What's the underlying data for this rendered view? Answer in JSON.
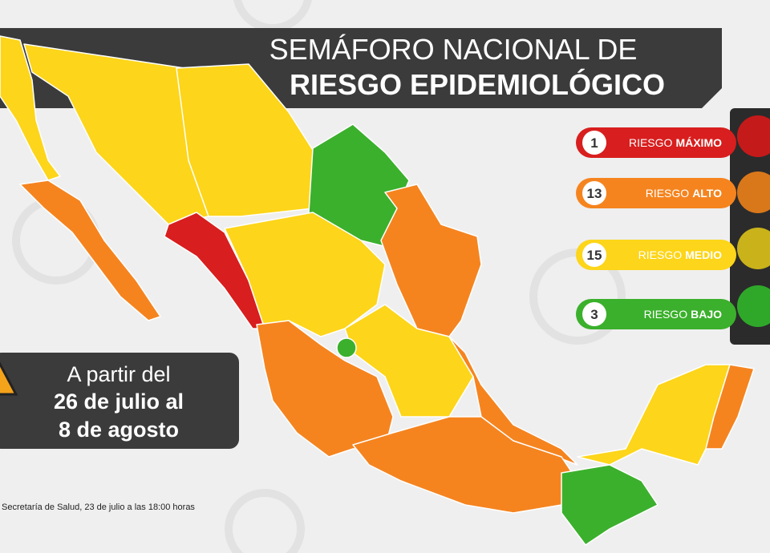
{
  "header": {
    "title_line1": "SEMÁFORO NACIONAL DE",
    "title_line2": "RIESGO EPIDEMIOLÓGICO"
  },
  "legend": [
    {
      "count": 1,
      "prefix": "RIESGO",
      "level": "MÁXIMO",
      "color": "#d81e1e"
    },
    {
      "count": 13,
      "prefix": "RIESGO",
      "level": "ALTO",
      "color": "#f5841f"
    },
    {
      "count": 15,
      "prefix": "RIESGO",
      "level": "MEDIO",
      "color": "#fdd51a"
    },
    {
      "count": 3,
      "prefix": "RIESGO",
      "level": "BAJO",
      "color": "#3bb02c"
    }
  ],
  "date_box": {
    "line1": "A partir del",
    "line2": "26 de julio al",
    "line3": "8 de agosto"
  },
  "source": "Secretaría de Salud, 23 de julio a las 18:00 horas"
}
